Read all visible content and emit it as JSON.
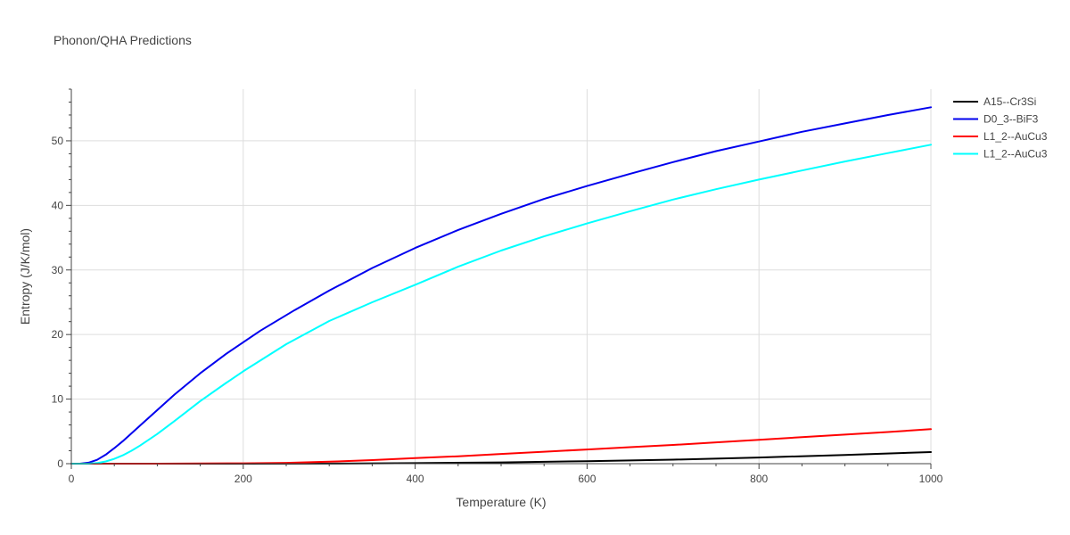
{
  "chart_data": {
    "type": "line",
    "title": "Phonon/QHA Predictions",
    "xlabel": "Temperature (K)",
    "ylabel": "Entropy (J/K/mol)",
    "xlim": [
      0,
      1000
    ],
    "ylim": [
      0,
      58
    ],
    "xticks": [
      0,
      200,
      400,
      600,
      800,
      1000
    ],
    "yticks": [
      0,
      10,
      20,
      30,
      40,
      50
    ],
    "grid": true,
    "legend_position": "top-right",
    "series": [
      {
        "name": "A15--Cr3Si",
        "color": "#000000",
        "x": [
          0,
          100,
          200,
          300,
          400,
          500,
          600,
          700,
          800,
          900,
          1000
        ],
        "y": [
          0,
          0,
          0,
          0.02,
          0.08,
          0.2,
          0.38,
          0.62,
          0.95,
          1.35,
          1.8
        ]
      },
      {
        "name": "D0_3--BiF3",
        "color": "#0000ee",
        "x": [
          0,
          10,
          20,
          30,
          40,
          50,
          60,
          80,
          100,
          120,
          150,
          180,
          220,
          260,
          300,
          350,
          400,
          450,
          500,
          550,
          600,
          650,
          700,
          750,
          800,
          850,
          900,
          950,
          1000
        ],
        "y": [
          0,
          0,
          0.15,
          0.6,
          1.4,
          2.4,
          3.5,
          5.9,
          8.3,
          10.7,
          14.0,
          17.0,
          20.6,
          23.8,
          26.8,
          30.3,
          33.4,
          36.2,
          38.7,
          41.0,
          43.0,
          44.9,
          46.7,
          48.4,
          49.9,
          51.4,
          52.7,
          54.0,
          55.2
        ]
      },
      {
        "name": "L1_2--AuCu3",
        "color": "#ff0000",
        "x": [
          0,
          100,
          200,
          250,
          300,
          350,
          400,
          450,
          500,
          550,
          600,
          650,
          700,
          750,
          800,
          850,
          900,
          950,
          1000
        ],
        "y": [
          0,
          0,
          0.05,
          0.12,
          0.3,
          0.55,
          0.85,
          1.15,
          1.5,
          1.85,
          2.2,
          2.55,
          2.9,
          3.3,
          3.7,
          4.1,
          4.5,
          4.9,
          5.35
        ]
      },
      {
        "name": "L1_2--AuCu3",
        "color": "#00ffff",
        "x": [
          0,
          20,
          30,
          40,
          50,
          60,
          70,
          80,
          100,
          120,
          150,
          180,
          200,
          250,
          300,
          350,
          400,
          450,
          500,
          550,
          600,
          650,
          700,
          750,
          800,
          850,
          900,
          950,
          1000
        ],
        "y": [
          0,
          0,
          0.1,
          0.35,
          0.75,
          1.3,
          2.0,
          2.8,
          4.6,
          6.6,
          9.7,
          12.5,
          14.3,
          18.5,
          22.1,
          25.0,
          27.7,
          30.5,
          33.0,
          35.2,
          37.2,
          39.1,
          40.9,
          42.5,
          44.0,
          45.4,
          46.8,
          48.1,
          49.4
        ]
      }
    ]
  }
}
